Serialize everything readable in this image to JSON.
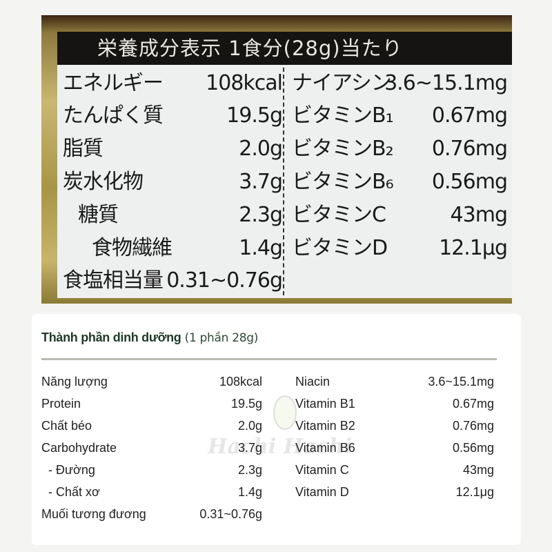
{
  "japanese_label": {
    "header": "栄養成分表示 1食分(28g)当たり",
    "left": [
      {
        "label": "エネルギー",
        "value": "108kcal"
      },
      {
        "label": "たんぱく質",
        "value": "19.5g"
      },
      {
        "label": "脂質",
        "value": "2.0g"
      },
      {
        "label": "炭水化物",
        "value": "3.7g"
      },
      {
        "label": "糖質",
        "value": "2.3g"
      },
      {
        "label": "食物繊維",
        "value": "1.4g"
      },
      {
        "label": "食塩相当量",
        "value": "0.31~0.76g"
      }
    ],
    "right": [
      {
        "label": "ナイアシン",
        "value": "3.6~15.1mg"
      },
      {
        "label": "ビタミンB₁",
        "value": "0.67mg"
      },
      {
        "label": "ビタミンB₂",
        "value": "0.76mg"
      },
      {
        "label": "ビタミンB₆",
        "value": "0.56mg"
      },
      {
        "label": "ビタミンC",
        "value": "43mg"
      },
      {
        "label": "ビタミンD",
        "value": "12.1μg"
      }
    ]
  },
  "translation": {
    "title": "Thành phần dinh dưỡng",
    "subtitle": "(1 phần 28g)",
    "left": [
      {
        "label": "Năng lượng",
        "value": "108kcal"
      },
      {
        "label": "Protein",
        "value": "19.5g"
      },
      {
        "label": "Chất béo",
        "value": "2.0g"
      },
      {
        "label": "Carbohydrate",
        "value": "3.7g"
      },
      {
        "label": "- Đường",
        "value": "2.3g"
      },
      {
        "label": "- Chất xơ",
        "value": "1.4g"
      },
      {
        "label": "Muối tương đương",
        "value": "0.31~0.76g"
      }
    ],
    "right": [
      {
        "label": "Niacin",
        "value": "3.6~15.1mg"
      },
      {
        "label": "Vitamin B1",
        "value": "0.67mg"
      },
      {
        "label": "Vitamin B2",
        "value": "0.76mg"
      },
      {
        "label": "Vitamin B6",
        "value": "0.56mg"
      },
      {
        "label": "Vitamin C",
        "value": "43mg"
      },
      {
        "label": "Vitamin D",
        "value": "12.1μg"
      }
    ]
  },
  "watermark": "Hachi Hachi",
  "colors": {
    "title": "#1e3a26",
    "header_bg": "#161412",
    "gold": "#c9b772"
  }
}
